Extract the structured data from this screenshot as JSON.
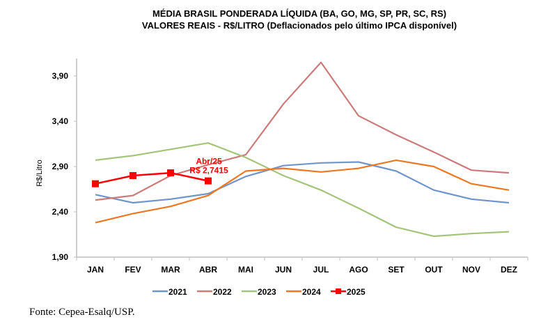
{
  "chart_data": {
    "type": "line",
    "title": "MÉDIA BRASIL PONDERADA LÍQUIDA (BA, GO, MG, SP, PR, SC, RS)",
    "subtitle": "VALORES REAIS - R$/LITRO (Deflacionados pelo último IPCA disponível)",
    "xlabel": "",
    "ylabel": "R$/Litro",
    "categories": [
      "JAN",
      "FEV",
      "MAR",
      "ABR",
      "MAI",
      "JUN",
      "JUL",
      "AGO",
      "SET",
      "OUT",
      "NOV",
      "DEZ"
    ],
    "ylim": [
      1.9,
      4.1
    ],
    "yticks": [
      1.9,
      2.4,
      2.9,
      3.4,
      3.9
    ],
    "ytick_labels": [
      "1,90",
      "2,40",
      "2,90",
      "3,40",
      "3,90"
    ],
    "grid": false,
    "legend_position": "bottom",
    "series": [
      {
        "name": "2021",
        "color": "#7094CC",
        "marker": "none",
        "values": [
          2.59,
          2.5,
          2.54,
          2.6,
          2.79,
          2.91,
          2.94,
          2.95,
          2.85,
          2.64,
          2.54,
          2.5
        ]
      },
      {
        "name": "2022",
        "color": "#CC7A7A",
        "marker": "none",
        "values": [
          2.53,
          2.58,
          2.8,
          2.92,
          3.03,
          3.59,
          4.05,
          3.46,
          3.25,
          3.06,
          2.86,
          2.83
        ]
      },
      {
        "name": "2023",
        "color": "#A3C57A",
        "marker": "none",
        "values": [
          2.97,
          3.02,
          3.09,
          3.16,
          3.0,
          2.8,
          2.64,
          2.44,
          2.23,
          2.13,
          2.16,
          2.18
        ]
      },
      {
        "name": "2024",
        "color": "#EE7722",
        "marker": "none",
        "values": [
          2.28,
          2.38,
          2.46,
          2.58,
          2.85,
          2.88,
          2.84,
          2.88,
          2.97,
          2.9,
          2.71,
          2.64
        ]
      },
      {
        "name": "2025",
        "color": "#FF0000",
        "marker": "square",
        "values": [
          2.71,
          2.8,
          2.83,
          2.7415,
          null,
          null,
          null,
          null,
          null,
          null,
          null,
          null
        ]
      }
    ],
    "annotations": [
      {
        "series": "2025",
        "category": "ABR",
        "lines": [
          "Abr/25",
          "R$ 2,7415"
        ],
        "color": "#FF0000"
      }
    ]
  },
  "source": "Fonte: Cepea-Esalq/USP."
}
